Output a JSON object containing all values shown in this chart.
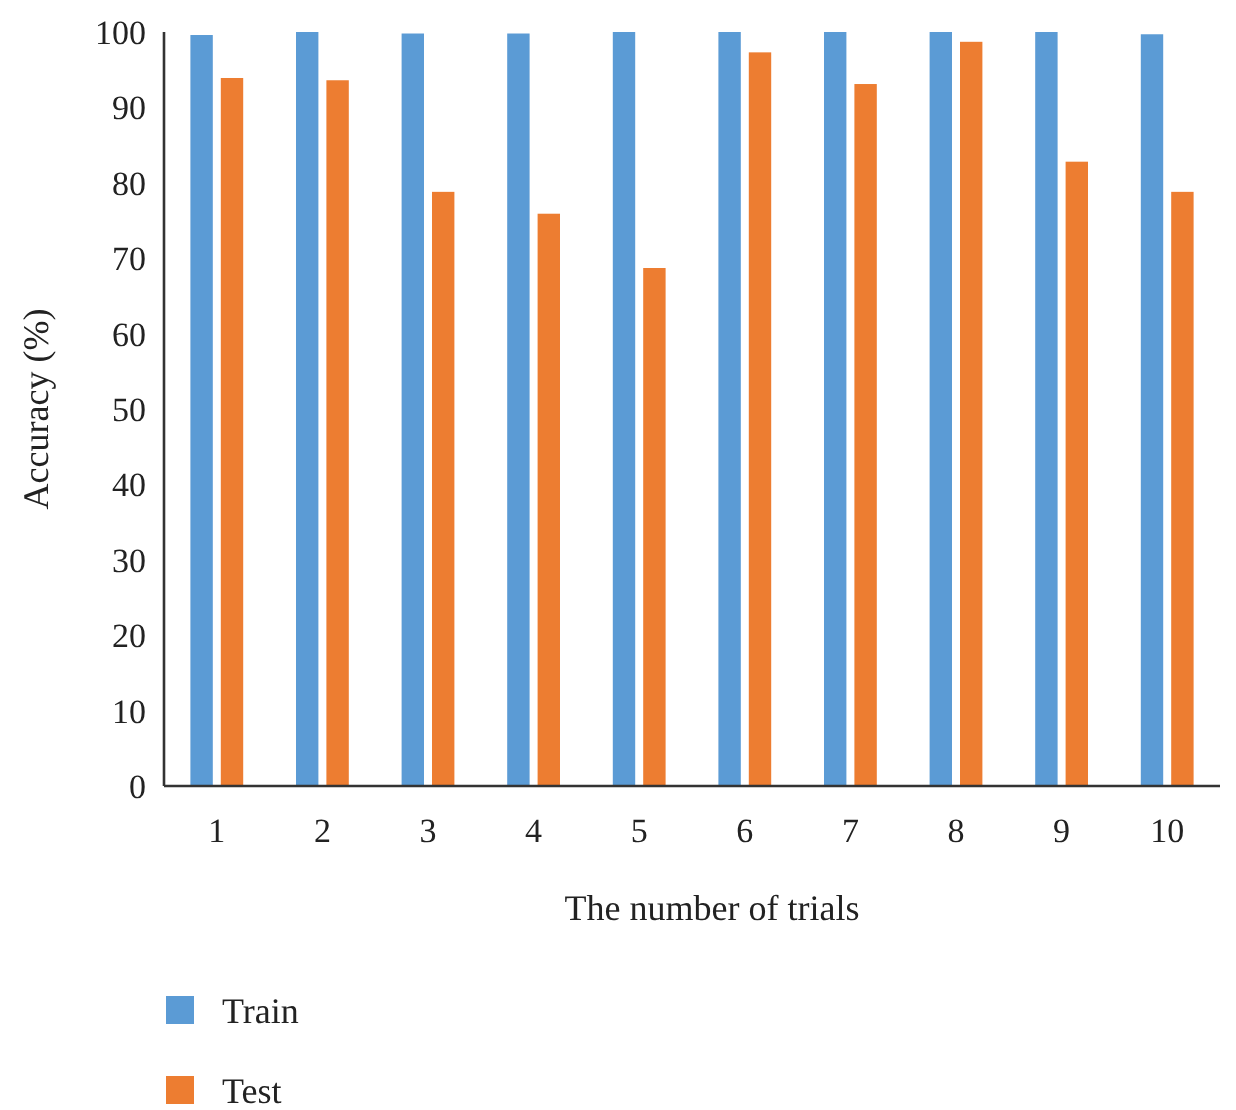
{
  "chart_data": {
    "type": "bar",
    "xlabel": "The number of trials",
    "ylabel": "Accuracy (%)",
    "categories": [
      "1",
      "2",
      "3",
      "4",
      "5",
      "6",
      "7",
      "8",
      "9",
      "10"
    ],
    "series": [
      {
        "name": "Train",
        "color": "#5b9bd5",
        "values": [
          99.6,
          100,
          99.8,
          99.8,
          100,
          100,
          100,
          100,
          100,
          99.7
        ]
      },
      {
        "name": "Test",
        "color": "#ed7d31",
        "values": [
          93.9,
          93.6,
          78.8,
          75.9,
          68.7,
          97.3,
          93.1,
          98.7,
          82.8,
          78.8
        ]
      }
    ],
    "ylim": [
      0,
      100
    ],
    "yticks": [
      0,
      10,
      20,
      30,
      40,
      50,
      60,
      70,
      80,
      90,
      100
    ],
    "grid": false,
    "legend": "bottom left"
  }
}
